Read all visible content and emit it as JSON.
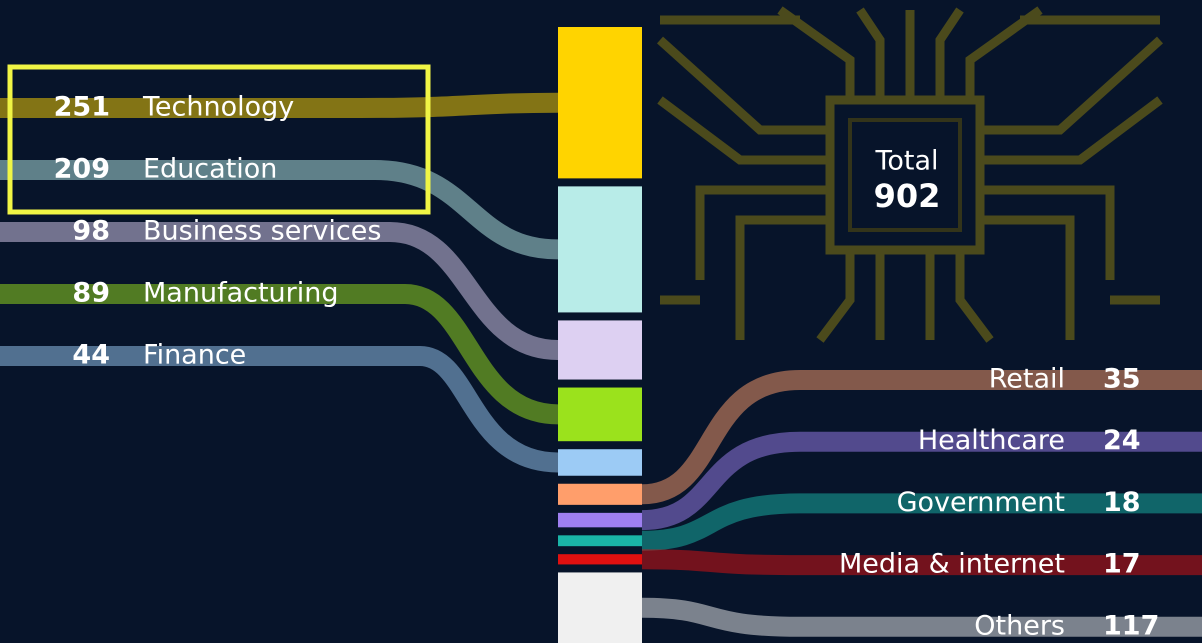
{
  "chart_data": {
    "type": "stacked-column",
    "total_label": "Total",
    "total": 902,
    "categories": [
      "Technology",
      "Education",
      "Business services",
      "Manufacturing",
      "Finance",
      "Retail",
      "Healthcare",
      "Government",
      "Media & internet",
      "Others"
    ],
    "values": [
      251,
      209,
      98,
      89,
      44,
      35,
      24,
      18,
      17,
      117
    ],
    "colors": [
      "#ffd400",
      "#b8ece8",
      "#ddd0f2",
      "#9be21c",
      "#9ccbf5",
      "#ff9e6b",
      "#9e7ff0",
      "#1ab5a8",
      "#e01010",
      "#f0f0f0"
    ]
  }
}
